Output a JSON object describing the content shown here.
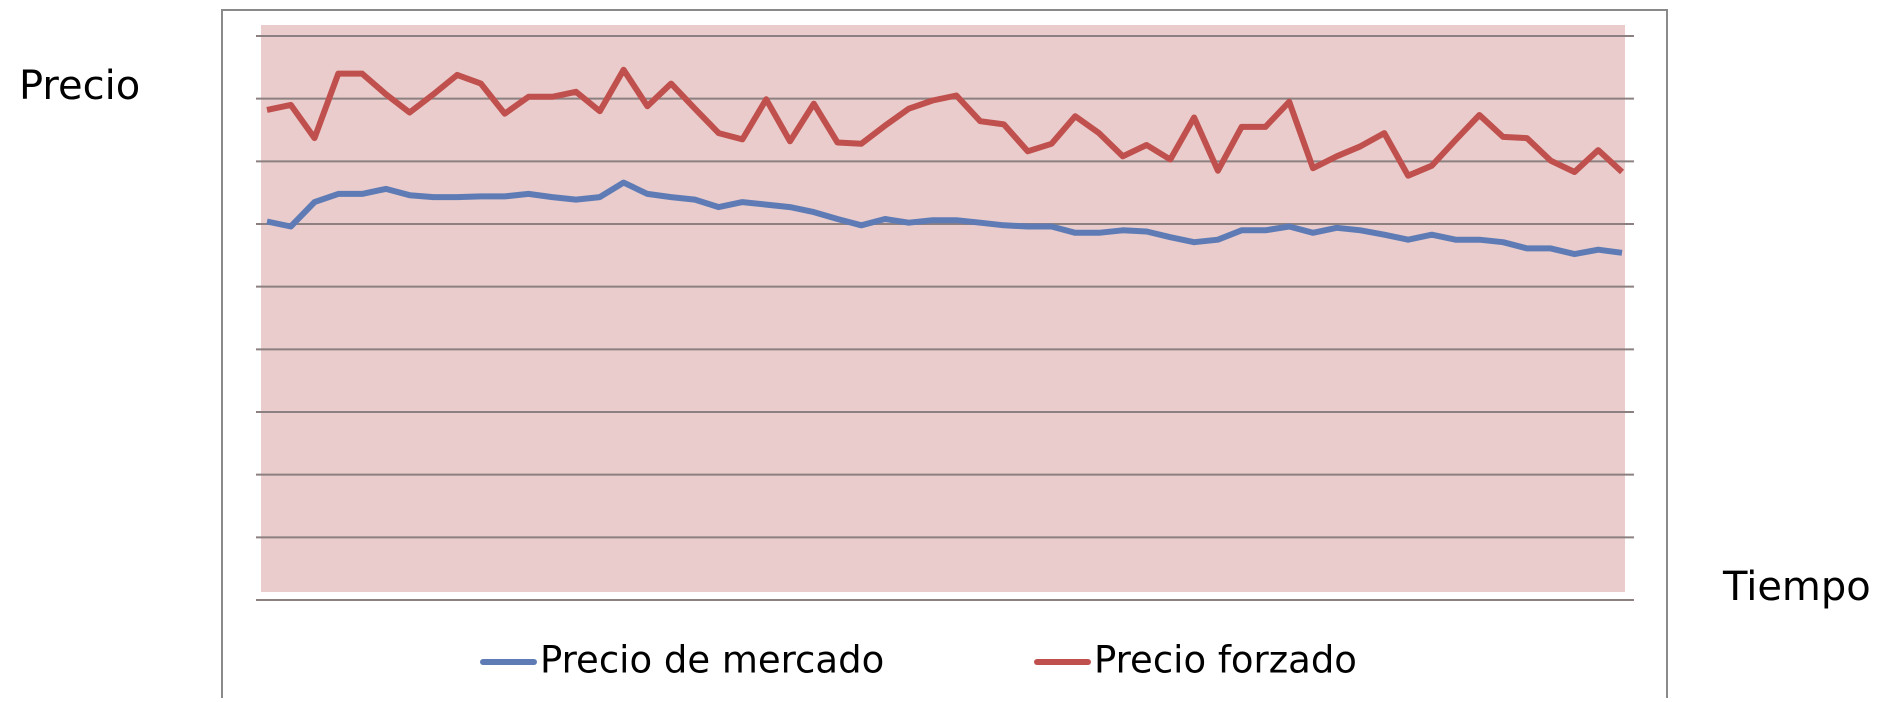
{
  "chart_data": {
    "type": "line",
    "ylabel": "Precio",
    "xlabel": "Tiempo",
    "ylim": [
      0,
      9
    ],
    "yticks": [
      0,
      1,
      2,
      3,
      4,
      5,
      6,
      7,
      8,
      9
    ],
    "grid": true,
    "legend": "bottom",
    "background": "#e9cccb",
    "series": [
      {
        "name": "Precio de mercado",
        "color": "#5f7bb5",
        "values": [
          6.04,
          5.96,
          6.35,
          6.48,
          6.48,
          6.56,
          6.46,
          6.43,
          6.43,
          6.44,
          6.44,
          6.48,
          6.43,
          6.39,
          6.43,
          6.66,
          6.48,
          6.43,
          6.39,
          6.27,
          6.35,
          6.31,
          6.27,
          6.19,
          6.08,
          5.98,
          6.08,
          6.02,
          6.06,
          6.06,
          6.02,
          5.98,
          5.96,
          5.96,
          5.86,
          5.86,
          5.9,
          5.88,
          5.79,
          5.71,
          5.75,
          5.9,
          5.9,
          5.96,
          5.86,
          5.94,
          5.9,
          5.83,
          5.75,
          5.83,
          5.75,
          5.75,
          5.71,
          5.61,
          5.61,
          5.52,
          5.59,
          5.54
        ]
      },
      {
        "name": "Precio forzado",
        "color": "#c0504d",
        "values": [
          7.82,
          7.9,
          7.37,
          8.4,
          8.4,
          8.07,
          7.78,
          8.07,
          8.38,
          8.24,
          7.76,
          8.03,
          8.03,
          8.11,
          7.8,
          8.46,
          7.88,
          8.24,
          7.84,
          7.45,
          7.35,
          7.99,
          7.32,
          7.92,
          7.3,
          7.28,
          7.57,
          7.84,
          7.97,
          8.05,
          7.64,
          7.59,
          7.16,
          7.28,
          7.72,
          7.45,
          7.08,
          7.26,
          7.03,
          7.7,
          6.85,
          7.55,
          7.55,
          7.95,
          6.89,
          7.08,
          7.24,
          7.45,
          6.77,
          6.93,
          7.34,
          7.74,
          7.39,
          7.37,
          7.01,
          6.83,
          7.18,
          6.83
        ]
      }
    ]
  }
}
